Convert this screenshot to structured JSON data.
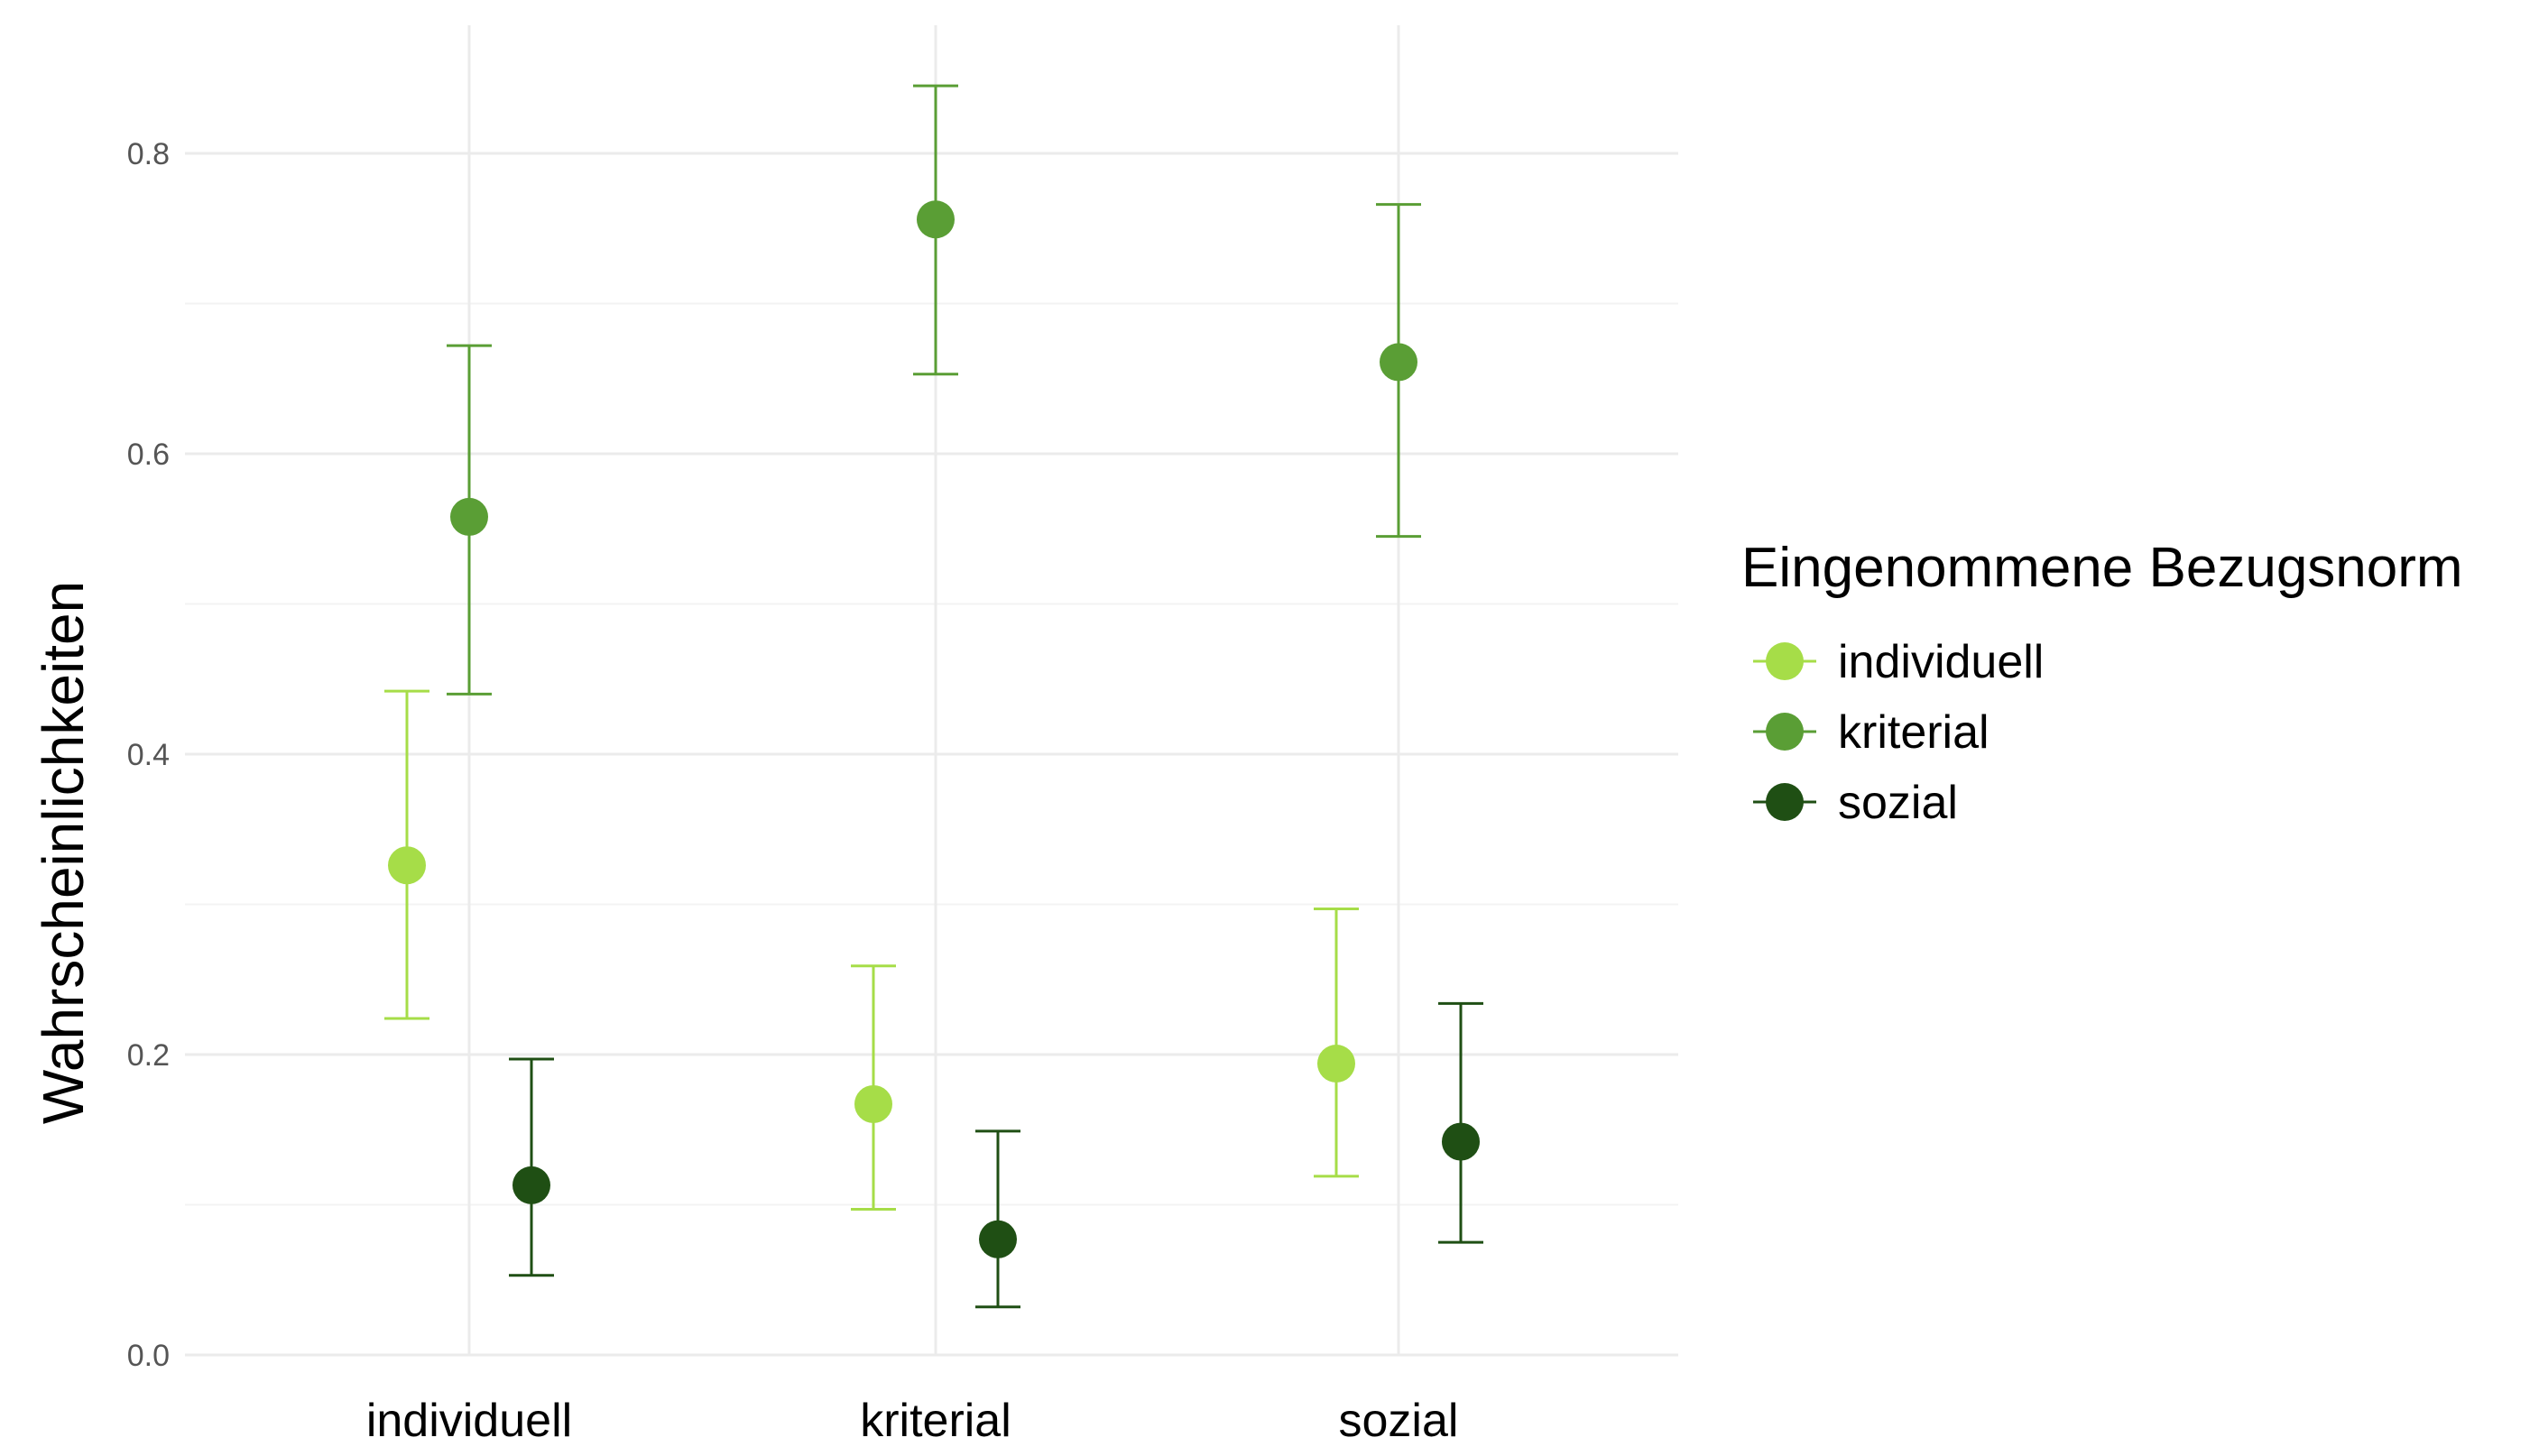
{
  "chart_data": {
    "type": "scatter",
    "subtype": "dot-with-errorbars",
    "title": "",
    "xlabel": "",
    "ylabel": "Wahrscheinlichkeiten",
    "ylim": [
      0,
      0.88
    ],
    "yticks": [
      0.0,
      0.2,
      0.4,
      0.6,
      0.8
    ],
    "ytick_labels": [
      "0.0",
      "0.2",
      "0.4",
      "0.6",
      "0.8"
    ],
    "grid": true,
    "categories": [
      "individuell",
      "kriterial",
      "sozial"
    ],
    "legend": {
      "title": "Eingenommene Bezugsnorm",
      "placement": "right"
    },
    "series": [
      {
        "name": "individuell",
        "color": "#a6dd48",
        "values": [
          0.326,
          0.167,
          0.194
        ],
        "lower": [
          0.224,
          0.097,
          0.119
        ],
        "upper": [
          0.442,
          0.259,
          0.297
        ]
      },
      {
        "name": "kriterial",
        "color": "#5a9e35",
        "values": [
          0.558,
          0.756,
          0.661
        ],
        "lower": [
          0.44,
          0.653,
          0.545
        ],
        "upper": [
          0.672,
          0.845,
          0.766
        ]
      },
      {
        "name": "sozial",
        "color": "#1f4f14",
        "values": [
          0.113,
          0.077,
          0.142
        ],
        "lower": [
          0.053,
          0.032,
          0.075
        ],
        "upper": [
          0.197,
          0.149,
          0.234
        ]
      }
    ]
  }
}
